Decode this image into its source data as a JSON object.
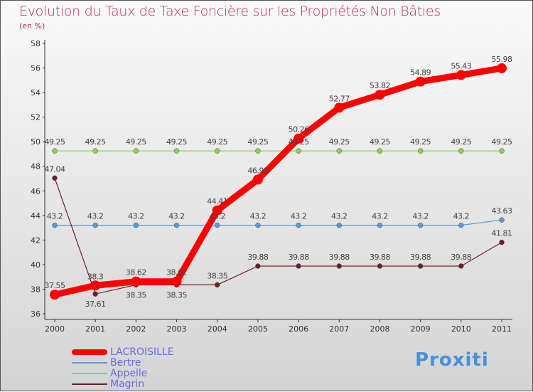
{
  "title": "Evolution du Taux de Taxe Foncière sur les Propriétés Non Bâties",
  "subtitle": "(en %)",
  "logo": "Proxiti",
  "chart_data": {
    "type": "line",
    "x": [
      "2000",
      "2001",
      "2002",
      "2003",
      "2004",
      "2005",
      "2006",
      "2007",
      "2008",
      "2009",
      "2010",
      "2011"
    ],
    "ylim": [
      36,
      58
    ],
    "yticks": [
      36,
      38,
      40,
      42,
      44,
      46,
      48,
      50,
      52,
      54,
      56,
      58
    ],
    "grid": false,
    "legend_position": "bottom-left",
    "series": [
      {
        "name": "Bertre",
        "color": "#5b9bd5",
        "values": [
          43.2,
          43.2,
          43.2,
          43.2,
          43.2,
          43.2,
          43.2,
          43.2,
          43.2,
          43.2,
          43.2,
          43.63
        ],
        "labels": [
          "43.2",
          "43.2",
          "43.2",
          "43.2",
          "43.2",
          "43.2",
          "43.2",
          "43.2",
          "43.2",
          "43.2",
          "43.2",
          "43.63"
        ]
      },
      {
        "name": "Appelle",
        "color": "#8fd14f",
        "values": [
          49.25,
          49.25,
          49.25,
          49.25,
          49.25,
          49.25,
          49.25,
          49.25,
          49.25,
          49.25,
          49.25,
          49.25
        ],
        "labels": [
          "49.25",
          "49.25",
          "49.25",
          "49.25",
          "49.25",
          "49.25",
          "49.25",
          "49.25",
          "49.25",
          "49.25",
          "49.25",
          "49.25"
        ]
      },
      {
        "name": "Magrin",
        "color": "#6b1f2a",
        "values": [
          47.04,
          37.61,
          38.35,
          38.35,
          38.35,
          39.88,
          39.88,
          39.88,
          39.88,
          39.88,
          39.88,
          41.81
        ],
        "labels": [
          "47.04",
          "37.61",
          "38.35",
          "38.35",
          "38.35",
          "39.88",
          "39.88",
          "39.88",
          "39.88",
          "39.88",
          "39.88",
          "41.81"
        ]
      },
      {
        "name": "LACROISILLE",
        "color": "#ff0000",
        "values": [
          37.55,
          38.3,
          38.62,
          38.62,
          44.41,
          46.92,
          50.26,
          52.77,
          53.82,
          54.89,
          55.43,
          55.98
        ],
        "labels": [
          "37.55",
          "38.3",
          "38.62",
          "38.62",
          "44.41",
          "46.92",
          "50.26",
          "52.77",
          "53.82",
          "54.89",
          "55.43",
          "55.98"
        ]
      }
    ],
    "legend": [
      "LACROISILLE",
      "Bertre",
      "Appelle",
      "Magrin"
    ]
  }
}
